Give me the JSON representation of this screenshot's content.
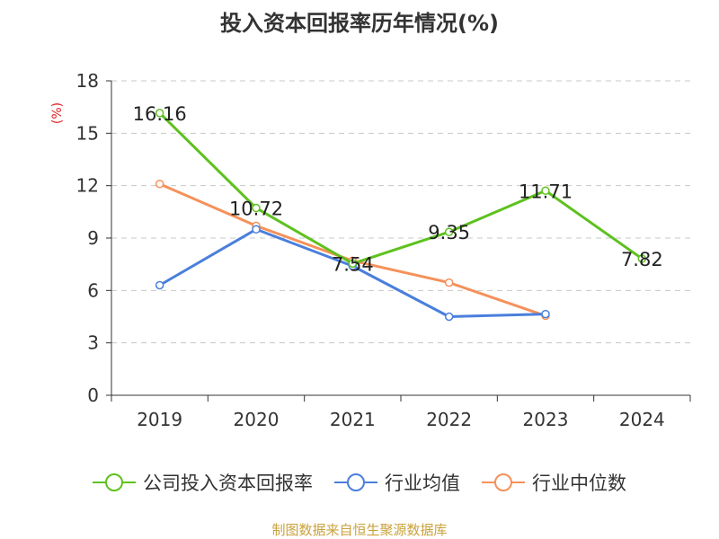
{
  "chart_data": {
    "type": "line",
    "title": "投入资本回报率历年情况(%)",
    "ylabel": "(%)",
    "xlabel": "",
    "categories": [
      "2019",
      "2020",
      "2021",
      "2022",
      "2023",
      "2024"
    ],
    "ylim": [
      0,
      18
    ],
    "yticks": [
      0,
      3,
      6,
      9,
      12,
      15,
      18
    ],
    "grid": true,
    "legend_position": "bottom",
    "series": [
      {
        "name": "公司投入资本回报率",
        "color": "#5ec11e",
        "values": [
          16.16,
          10.72,
          7.54,
          9.35,
          11.71,
          7.82
        ],
        "labels": [
          "16.16",
          "10.72",
          "7.54",
          "9.35",
          "11.71",
          "7.82"
        ]
      },
      {
        "name": "行业均值",
        "color": "#4a7fdc",
        "values": [
          6.3,
          9.5,
          7.4,
          4.5,
          4.65,
          null
        ]
      },
      {
        "name": "行业中位数",
        "color": "#f5915a",
        "values": [
          12.1,
          9.7,
          7.7,
          6.45,
          4.55,
          null
        ]
      }
    ]
  },
  "source": "制图数据来自恒生聚源数据库"
}
